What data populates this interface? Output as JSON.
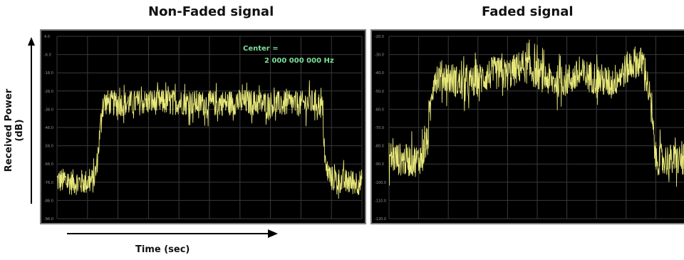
{
  "chart_data": [
    {
      "type": "line",
      "title": "Non-Faded signal",
      "xlabel": "Time (sec)",
      "ylabel": "Received Power (dB)",
      "y_ticks": [
        "4.0",
        "-6.0",
        "-16.0",
        "-26.0",
        "-36.0",
        "-46.0",
        "-56.0",
        "-66.0",
        "-76.0",
        "-86.0",
        "-96.0"
      ],
      "ylim": [
        -96,
        4
      ],
      "xlim": [
        0,
        10
      ],
      "grid": true,
      "annotation_line1": "Center =",
      "annotation_line2": "2 000 000 000 Hz",
      "series": [
        {
          "color": "#e8e87a",
          "x": [
            0,
            0.5,
            1.0,
            1.2,
            1.3,
            1.5,
            2,
            3,
            4,
            5,
            6,
            7,
            8,
            8.5,
            8.7,
            8.8,
            9.0,
            9.5,
            10
          ],
          "y": [
            -75,
            -76,
            -76,
            -75,
            -68,
            -32,
            -33,
            -32,
            -32,
            -33,
            -32,
            -33,
            -33,
            -32,
            -35,
            -68,
            -74,
            -76,
            -76
          ]
        }
      ]
    },
    {
      "type": "line",
      "title": "Faded signal",
      "y_ticks": [
        "-20.0",
        "-30.0",
        "-40.0",
        "-50.0",
        "-60.0",
        "-70.0",
        "-80.0",
        "-90.0",
        "-100.0",
        "-110.0",
        "-120.0"
      ],
      "ylim": [
        -120,
        -20
      ],
      "xlim": [
        0,
        10
      ],
      "grid": true,
      "series": [
        {
          "color": "#e8e87a",
          "x": [
            0,
            0.5,
            1.0,
            1.3,
            1.5,
            2,
            2.5,
            3,
            3.5,
            4,
            4.5,
            5,
            5.5,
            6,
            6.5,
            7,
            7.5,
            8,
            8.3,
            8.6,
            8.8,
            9,
            9.5,
            10
          ],
          "y": [
            -86,
            -88,
            -88,
            -78,
            -42,
            -42,
            -47,
            -44,
            -40,
            -41,
            -36,
            -40,
            -45,
            -44,
            -41,
            -43,
            -46,
            -38,
            -34,
            -35,
            -54,
            -87,
            -88,
            -88
          ]
        }
      ]
    }
  ]
}
